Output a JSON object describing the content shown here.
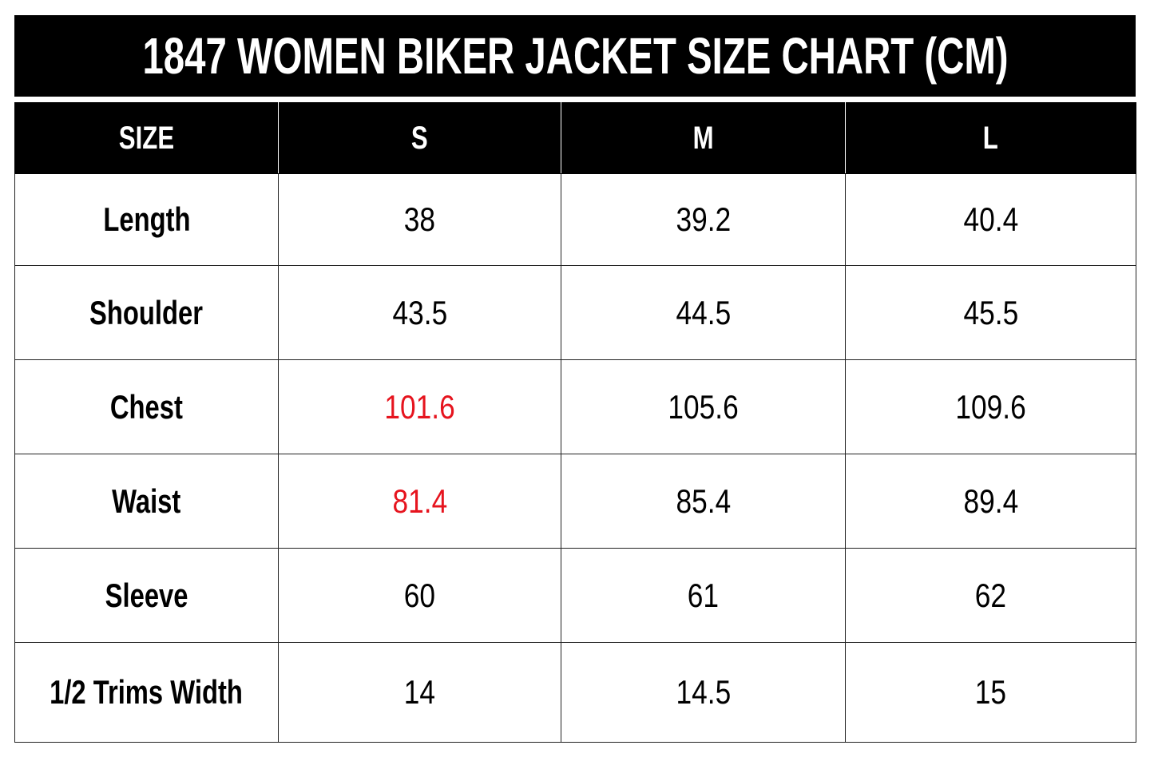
{
  "title": "1847 WOMEN BIKER JACKET SIZE CHART (CM)",
  "colors": {
    "header_bg": "#000000",
    "header_text": "#ffffff",
    "highlight": "#e6141e"
  },
  "table": {
    "headers": [
      "SIZE",
      "S",
      "M",
      "L"
    ],
    "rows": [
      {
        "label": "Length",
        "values": [
          "38",
          "39.2",
          "40.4"
        ],
        "highlight": [
          false,
          false,
          false
        ]
      },
      {
        "label": "Shoulder",
        "values": [
          "43.5",
          "44.5",
          "45.5"
        ],
        "highlight": [
          false,
          false,
          false
        ]
      },
      {
        "label": "Chest",
        "values": [
          "101.6",
          "105.6",
          "109.6"
        ],
        "highlight": [
          true,
          false,
          false
        ]
      },
      {
        "label": "Waist",
        "values": [
          "81.4",
          "85.4",
          "89.4"
        ],
        "highlight": [
          true,
          false,
          false
        ]
      },
      {
        "label": "Sleeve",
        "values": [
          "60",
          "61",
          "62"
        ],
        "highlight": [
          false,
          false,
          false
        ]
      },
      {
        "label": "1/2 Trims Width",
        "values": [
          "14",
          "14.5",
          "15"
        ],
        "highlight": [
          false,
          false,
          false
        ]
      }
    ]
  }
}
